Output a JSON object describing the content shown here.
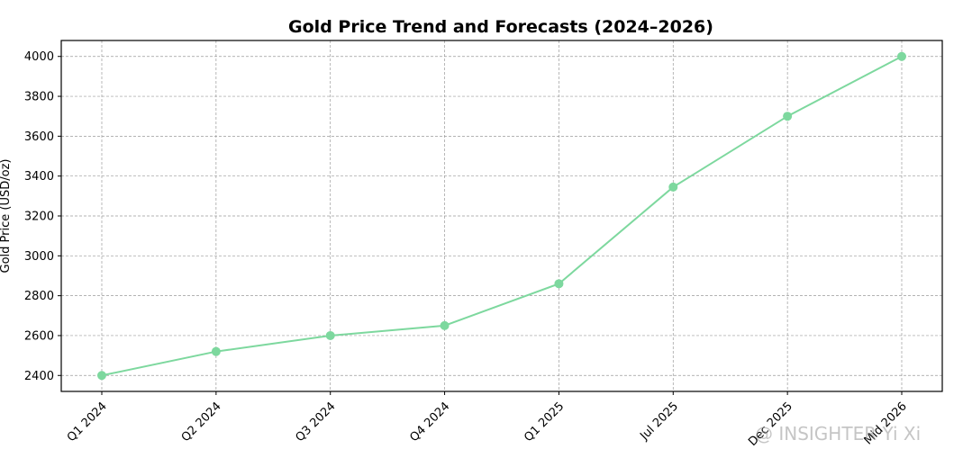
{
  "chart_data": {
    "type": "line",
    "title": "Gold Price Trend and Forecasts (2024–2026)",
    "xlabel": "",
    "ylabel": "Gold Price (USD/oz)",
    "categories": [
      "Q1 2024",
      "Q2 2024",
      "Q3 2024",
      "Q4 2024",
      "Q1 2025",
      "Jul 2025",
      "Dec 2025",
      "Mid 2026"
    ],
    "series": [
      {
        "values": [
          2400,
          2520,
          2600,
          2650,
          2860,
          3345,
          3700,
          4000
        ],
        "color": "#7dd89e"
      }
    ],
    "ylim": [
      2320,
      4080
    ],
    "yticks": [
      2400,
      2600,
      2800,
      3000,
      3200,
      3400,
      3600,
      3800,
      4000
    ],
    "grid": true,
    "marker": "circle"
  },
  "watermark": "@ INSIGHTER Yi Xi"
}
